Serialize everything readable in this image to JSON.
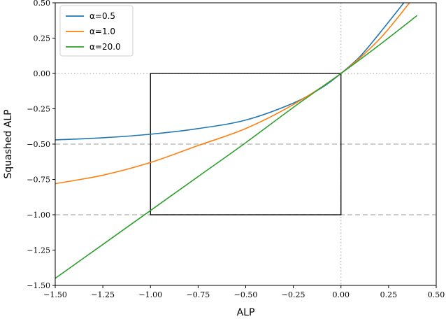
{
  "chart_data": {
    "type": "line",
    "xlabel": "ALP",
    "ylabel": "Squashed  ALP",
    "xlim": [
      -1.5,
      0.5
    ],
    "ylim": [
      -1.5,
      0.5
    ],
    "xticks": [
      -1.5,
      -1.25,
      -1.0,
      -0.75,
      -0.5,
      -0.25,
      0.0,
      0.25,
      0.5
    ],
    "xtick_labels": [
      "−1.50",
      "−1.25",
      "−1.00",
      "−0.75",
      "−0.50",
      "−0.25",
      "0.00",
      "0.25",
      "0.50"
    ],
    "yticks": [
      -1.5,
      -1.25,
      -1.0,
      -0.75,
      -0.5,
      -0.25,
      0.0,
      0.25,
      0.5
    ],
    "ytick_labels": [
      "−1.50",
      "−1.25",
      "−1.00",
      "−0.75",
      "−0.50",
      "−0.25",
      "0.00",
      "0.25",
      "0.50"
    ],
    "grid": false,
    "legend_position": "top-left",
    "reference_lines": {
      "horizontal_dotted": [
        0.0
      ],
      "vertical_dotted": [
        0.0
      ],
      "horizontal_dashed": [
        -0.5,
        -1.0
      ]
    },
    "box": {
      "x": [
        -1.0,
        0.0
      ],
      "y": [
        -1.0,
        0.0
      ]
    },
    "series": [
      {
        "name": "α=0.5",
        "color": "#1f77b4",
        "x": [
          -1.5,
          -1.25,
          -1.0,
          -0.75,
          -0.5,
          -0.25,
          -0.1,
          0.0,
          0.1,
          0.2,
          0.33
        ],
        "y": [
          -0.47,
          -0.455,
          -0.43,
          -0.39,
          -0.33,
          -0.21,
          -0.1,
          0.0,
          0.12,
          0.28,
          0.5
        ]
      },
      {
        "name": "α=1.0",
        "color": "#ff7f0e",
        "x": [
          -1.5,
          -1.25,
          -1.0,
          -0.75,
          -0.5,
          -0.25,
          0.0,
          0.2,
          0.36
        ],
        "y": [
          -0.78,
          -0.72,
          -0.63,
          -0.51,
          -0.39,
          -0.22,
          0.0,
          0.24,
          0.5
        ]
      },
      {
        "name": "α=20.0",
        "color": "#2ca02c",
        "x": [
          -1.5,
          -1.25,
          -1.0,
          -0.75,
          -0.5,
          -0.25,
          0.0,
          0.2,
          0.4
        ],
        "y": [
          -1.45,
          -1.21,
          -0.97,
          -0.73,
          -0.49,
          -0.24,
          0.0,
          0.2,
          0.41
        ]
      }
    ]
  }
}
